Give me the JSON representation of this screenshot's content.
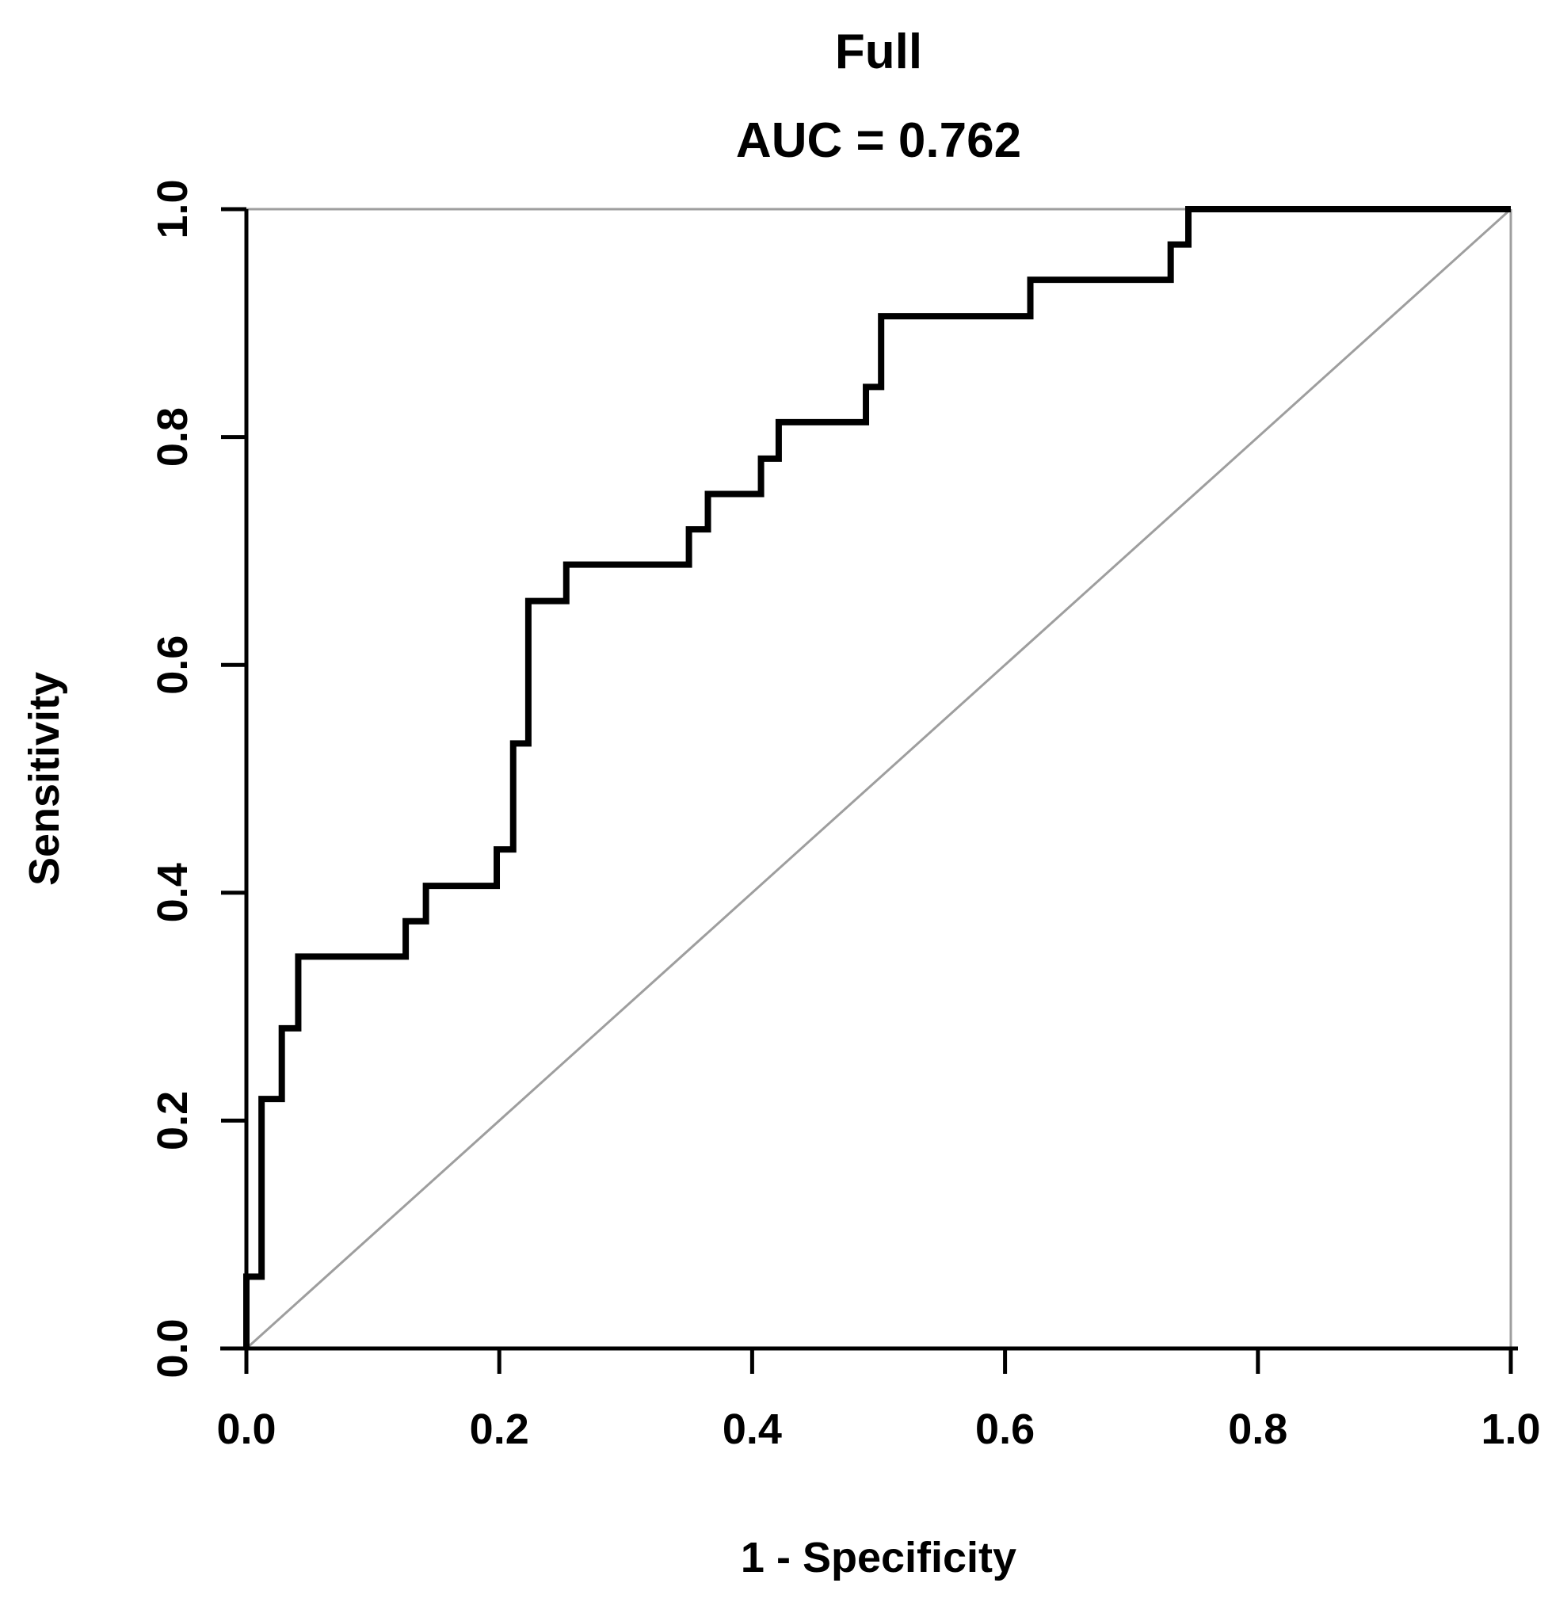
{
  "chart_data": {
    "type": "line",
    "subtype": "roc_step_curve",
    "title": "Full",
    "subtitle": "AUC = 0.762",
    "auc": 0.762,
    "xlabel": "1 - Specificity",
    "ylabel": "Sensitivity",
    "xlim": [
      0.0,
      1.0
    ],
    "ylim": [
      0.0,
      1.0
    ],
    "x_ticks": [
      0.0,
      0.2,
      0.4,
      0.6,
      0.8,
      1.0
    ],
    "y_ticks": [
      0.0,
      0.2,
      0.4,
      0.6,
      0.8,
      1.0
    ],
    "x_tick_labels": [
      "0.0",
      "0.2",
      "0.4",
      "0.6",
      "0.8",
      "1.0"
    ],
    "y_tick_labels": [
      "0.0",
      "0.2",
      "0.4",
      "0.6",
      "0.8",
      "1.0"
    ],
    "grid": false,
    "legend": "none",
    "series": [
      {
        "name": "ROC curve",
        "color": "#000000",
        "line_width": 8,
        "points": [
          [
            0.0,
            0.0
          ],
          [
            0.0,
            0.063
          ],
          [
            0.012,
            0.063
          ],
          [
            0.012,
            0.219
          ],
          [
            0.028,
            0.219
          ],
          [
            0.028,
            0.281
          ],
          [
            0.041,
            0.281
          ],
          [
            0.041,
            0.344
          ],
          [
            0.126,
            0.344
          ],
          [
            0.126,
            0.375
          ],
          [
            0.142,
            0.375
          ],
          [
            0.142,
            0.406
          ],
          [
            0.198,
            0.406
          ],
          [
            0.198,
            0.438
          ],
          [
            0.211,
            0.438
          ],
          [
            0.211,
            0.531
          ],
          [
            0.223,
            0.531
          ],
          [
            0.223,
            0.656
          ],
          [
            0.253,
            0.656
          ],
          [
            0.253,
            0.688
          ],
          [
            0.35,
            0.688
          ],
          [
            0.35,
            0.719
          ],
          [
            0.365,
            0.719
          ],
          [
            0.365,
            0.75
          ],
          [
            0.407,
            0.75
          ],
          [
            0.407,
            0.781
          ],
          [
            0.421,
            0.781
          ],
          [
            0.421,
            0.813
          ],
          [
            0.49,
            0.813
          ],
          [
            0.49,
            0.844
          ],
          [
            0.502,
            0.844
          ],
          [
            0.502,
            0.906
          ],
          [
            0.62,
            0.906
          ],
          [
            0.62,
            0.938
          ],
          [
            0.731,
            0.938
          ],
          [
            0.731,
            0.969
          ],
          [
            0.745,
            0.969
          ],
          [
            0.745,
            1.0
          ],
          [
            1.0,
            1.0
          ]
        ]
      },
      {
        "name": "Chance reference diagonal",
        "color": "#9e9e9e",
        "line_width": 3,
        "points": [
          [
            0.0,
            0.0
          ],
          [
            1.0,
            1.0
          ]
        ]
      }
    ]
  },
  "colors": {
    "curve": "#000000",
    "reference_line": "#9e9e9e",
    "plot_border": "#9e9e9e",
    "axis": "#000000",
    "text": "#000000",
    "background": "#ffffff"
  }
}
